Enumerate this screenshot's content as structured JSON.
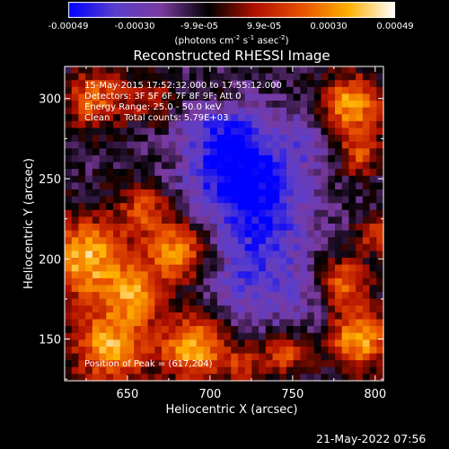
{
  "colorbar": {
    "ticks": [
      "-0.00049",
      "-0.00030",
      "-9.9e-05",
      "9.9e-05",
      "0.00030",
      "0.00049"
    ],
    "tick_values": [
      -0.00049,
      -0.0003,
      -9.9e-05,
      9.9e-05,
      0.0003,
      0.00049
    ],
    "range": [
      -0.00049,
      0.00049
    ],
    "units_prefix": "(photons cm",
    "units_exp1": "-2",
    "units_mid1": " s",
    "units_exp2": "-1",
    "units_mid2": " asec",
    "units_exp3": "-2",
    "units_suffix": ")",
    "colormap_stops": [
      "#0000ff",
      "#5a3ecc",
      "#7a3a9e",
      "#000000",
      "#b01000",
      "#e85000",
      "#ffb000",
      "#ffffff"
    ]
  },
  "title": "Reconstructed RHESSI Image",
  "info": {
    "line1": "15-May-2015 17:52:32.000 to 17:55:12.000",
    "line2": "Detectors: 3F 5F 6F 7F 8F 9F; Att 0",
    "line3": "Energy Range: 25.0 - 50.0 keV",
    "line4": "Clean     Total counts: 5.79E+03",
    "peak": "Position of Peak = (617,204)"
  },
  "date_stamp": "21-May-2022 07:56",
  "chart_data": {
    "type": "heatmap",
    "title": "Reconstructed RHESSI Image",
    "xlabel": "Heliocentric X (arcsec)",
    "ylabel": "Heliocentric Y (arcsec)",
    "xlim": [
      612,
      805
    ],
    "ylim": [
      124,
      320
    ],
    "xticks": [
      650,
      700,
      750,
      800
    ],
    "yticks": [
      150,
      200,
      250,
      300
    ],
    "peak_position": [
      617,
      204
    ],
    "intensity_sources": [
      {
        "x": 625,
        "y": 200,
        "amp": 0.00049,
        "sigma": 18
      },
      {
        "x": 640,
        "y": 145,
        "amp": 0.00046,
        "sigma": 16
      },
      {
        "x": 680,
        "y": 205,
        "amp": 0.00042,
        "sigma": 13
      },
      {
        "x": 690,
        "y": 145,
        "amp": 0.00048,
        "sigma": 14
      },
      {
        "x": 655,
        "y": 178,
        "amp": 0.00036,
        "sigma": 12
      },
      {
        "x": 660,
        "y": 232,
        "amp": 0.00028,
        "sigma": 11
      },
      {
        "x": 630,
        "y": 300,
        "amp": 0.00034,
        "sigma": 13
      },
      {
        "x": 665,
        "y": 300,
        "amp": 0.00022,
        "sigma": 10
      },
      {
        "x": 785,
        "y": 295,
        "amp": 0.00047,
        "sigma": 13
      },
      {
        "x": 790,
        "y": 265,
        "amp": 0.0003,
        "sigma": 9
      },
      {
        "x": 790,
        "y": 150,
        "amp": 0.00047,
        "sigma": 13
      },
      {
        "x": 780,
        "y": 185,
        "amp": 0.00038,
        "sigma": 11
      },
      {
        "x": 800,
        "y": 215,
        "amp": 0.00025,
        "sigma": 8
      },
      {
        "x": 745,
        "y": 140,
        "amp": 0.0003,
        "sigma": 9
      },
      {
        "x": 720,
        "y": 135,
        "amp": 0.00022,
        "sigma": 9
      },
      {
        "x": 705,
        "y": 300,
        "amp": 0.00018,
        "sigma": 8
      }
    ],
    "negative_sources": [
      {
        "x": 718,
        "y": 252,
        "amp": -0.0004,
        "sigma": 22
      },
      {
        "x": 735,
        "y": 215,
        "amp": -0.00022,
        "sigma": 20
      },
      {
        "x": 722,
        "y": 180,
        "amp": -0.00018,
        "sigma": 18
      },
      {
        "x": 705,
        "y": 285,
        "amp": -0.0002,
        "sigma": 16
      },
      {
        "x": 760,
        "y": 275,
        "amp": -0.00015,
        "sigma": 15
      },
      {
        "x": 760,
        "y": 175,
        "amp": -0.00012,
        "sigma": 14
      }
    ]
  }
}
